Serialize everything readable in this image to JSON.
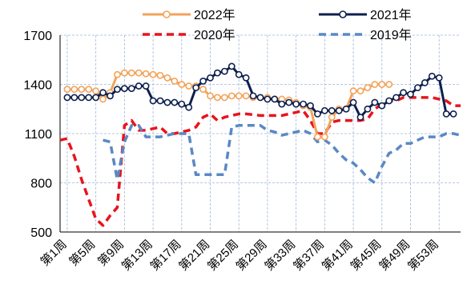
{
  "chart_data": {
    "type": "line",
    "title": "",
    "xlabel": "",
    "ylabel": "",
    "ylim": [
      500,
      1700
    ],
    "yticks": [
      500,
      800,
      1100,
      1400,
      1700
    ],
    "grid": true,
    "legend_position": "top",
    "categories": [
      "第1周",
      "第5周",
      "第9周",
      "第13周",
      "第17周",
      "第21周",
      "第25周",
      "第29周",
      "第33周",
      "第37周",
      "第41周",
      "第45周",
      "第49周",
      "第53周"
    ],
    "series": [
      {
        "name": "2022年",
        "color": "#f4a35a",
        "style": "solid-marker",
        "points": [
          [
            1,
            1370
          ],
          [
            2,
            1370
          ],
          [
            3,
            1370
          ],
          [
            4,
            1370
          ],
          [
            5,
            1360
          ],
          [
            6,
            1310
          ],
          [
            7,
            1350
          ],
          [
            8,
            1460
          ],
          [
            9,
            1470
          ],
          [
            10,
            1470
          ],
          [
            11,
            1470
          ],
          [
            12,
            1465
          ],
          [
            13,
            1460
          ],
          [
            14,
            1455
          ],
          [
            15,
            1440
          ],
          [
            16,
            1420
          ],
          [
            17,
            1400
          ],
          [
            18,
            1390
          ],
          [
            19,
            1390
          ],
          [
            20,
            1370
          ],
          [
            21,
            1330
          ],
          [
            22,
            1320
          ],
          [
            23,
            1320
          ],
          [
            24,
            1330
          ],
          [
            25,
            1330
          ],
          [
            26,
            1330
          ],
          [
            27,
            1320
          ],
          [
            28,
            1320
          ],
          [
            29,
            1320
          ],
          [
            30,
            1310
          ],
          [
            31,
            1310
          ],
          [
            32,
            1305
          ],
          [
            33,
            1290
          ],
          [
            34,
            1270
          ],
          [
            35,
            1260
          ],
          [
            36,
            1080
          ],
          [
            37,
            1080
          ],
          [
            38,
            1200
          ],
          [
            39,
            1250
          ],
          [
            40,
            1250
          ],
          [
            41,
            1360
          ],
          [
            42,
            1360
          ],
          [
            43,
            1380
          ],
          [
            44,
            1400
          ],
          [
            45,
            1400
          ],
          [
            46,
            1400
          ]
        ]
      },
      {
        "name": "2021年",
        "color": "#0d1f4e",
        "style": "solid-marker",
        "points": [
          [
            1,
            1320
          ],
          [
            2,
            1320
          ],
          [
            3,
            1320
          ],
          [
            4,
            1320
          ],
          [
            5,
            1320
          ],
          [
            6,
            1350
          ],
          [
            7,
            1330
          ],
          [
            8,
            1370
          ],
          [
            9,
            1375
          ],
          [
            10,
            1375
          ],
          [
            11,
            1390
          ],
          [
            12,
            1390
          ],
          [
            13,
            1300
          ],
          [
            14,
            1300
          ],
          [
            15,
            1290
          ],
          [
            16,
            1290
          ],
          [
            17,
            1280
          ],
          [
            18,
            1260
          ],
          [
            19,
            1380
          ],
          [
            20,
            1420
          ],
          [
            21,
            1440
          ],
          [
            22,
            1470
          ],
          [
            23,
            1480
          ],
          [
            24,
            1510
          ],
          [
            25,
            1460
          ],
          [
            26,
            1440
          ],
          [
            27,
            1330
          ],
          [
            28,
            1320
          ],
          [
            29,
            1310
          ],
          [
            30,
            1310
          ],
          [
            31,
            1280
          ],
          [
            32,
            1290
          ],
          [
            33,
            1280
          ],
          [
            34,
            1280
          ],
          [
            35,
            1270
          ],
          [
            36,
            1220
          ],
          [
            37,
            1240
          ],
          [
            38,
            1240
          ],
          [
            39,
            1240
          ],
          [
            40,
            1250
          ],
          [
            41,
            1290
          ],
          [
            42,
            1200
          ],
          [
            43,
            1250
          ],
          [
            44,
            1290
          ],
          [
            45,
            1270
          ],
          [
            46,
            1300
          ],
          [
            47,
            1320
          ],
          [
            48,
            1350
          ],
          [
            49,
            1340
          ],
          [
            50,
            1380
          ],
          [
            51,
            1410
          ],
          [
            52,
            1450
          ],
          [
            53,
            1440
          ],
          [
            54,
            1220
          ],
          [
            55,
            1220
          ]
        ]
      },
      {
        "name": "2020年",
        "color": "#e8141c",
        "style": "dashed",
        "points": [
          [
            0,
            1060
          ],
          [
            1,
            1070
          ],
          [
            2,
            960
          ],
          [
            3,
            820
          ],
          [
            4,
            700
          ],
          [
            5,
            580
          ],
          [
            6,
            540
          ],
          [
            7,
            600
          ],
          [
            8,
            650
          ],
          [
            9,
            1150
          ],
          [
            10,
            1180
          ],
          [
            11,
            1120
          ],
          [
            12,
            1120
          ],
          [
            13,
            1130
          ],
          [
            14,
            1140
          ],
          [
            15,
            1100
          ],
          [
            16,
            1100
          ],
          [
            17,
            1110
          ],
          [
            18,
            1120
          ],
          [
            19,
            1140
          ],
          [
            20,
            1200
          ],
          [
            21,
            1220
          ],
          [
            22,
            1180
          ],
          [
            23,
            1200
          ],
          [
            24,
            1210
          ],
          [
            25,
            1220
          ],
          [
            26,
            1220
          ],
          [
            27,
            1215
          ],
          [
            28,
            1210
          ],
          [
            29,
            1210
          ],
          [
            30,
            1210
          ],
          [
            31,
            1210
          ],
          [
            32,
            1220
          ],
          [
            33,
            1230
          ],
          [
            34,
            1240
          ],
          [
            35,
            1180
          ],
          [
            36,
            1100
          ],
          [
            37,
            1100
          ],
          [
            38,
            1170
          ],
          [
            39,
            1180
          ],
          [
            40,
            1180
          ],
          [
            41,
            1180
          ],
          [
            42,
            1180
          ],
          [
            43,
            1190
          ],
          [
            44,
            1250
          ],
          [
            45,
            1280
          ],
          [
            46,
            1300
          ],
          [
            47,
            1300
          ],
          [
            48,
            1320
          ],
          [
            49,
            1320
          ],
          [
            50,
            1320
          ],
          [
            51,
            1320
          ],
          [
            52,
            1320
          ],
          [
            53,
            1310
          ],
          [
            54,
            1300
          ],
          [
            55,
            1270
          ],
          [
            56,
            1270
          ]
        ]
      },
      {
        "name": "2019年",
        "color": "#5a88c4",
        "style": "dashed",
        "points": [
          [
            6,
            1060
          ],
          [
            7,
            1050
          ],
          [
            8,
            820
          ],
          [
            9,
            1050
          ],
          [
            10,
            1150
          ],
          [
            11,
            1150
          ],
          [
            12,
            1080
          ],
          [
            13,
            1080
          ],
          [
            14,
            1080
          ],
          [
            15,
            1090
          ],
          [
            16,
            1100
          ],
          [
            17,
            1100
          ],
          [
            18,
            1100
          ],
          [
            19,
            850
          ],
          [
            20,
            850
          ],
          [
            21,
            850
          ],
          [
            22,
            850
          ],
          [
            23,
            850
          ],
          [
            24,
            1140
          ],
          [
            25,
            1150
          ],
          [
            26,
            1150
          ],
          [
            27,
            1150
          ],
          [
            28,
            1150
          ],
          [
            29,
            1120
          ],
          [
            30,
            1110
          ],
          [
            31,
            1090
          ],
          [
            32,
            1100
          ],
          [
            33,
            1110
          ],
          [
            34,
            1120
          ],
          [
            35,
            1100
          ],
          [
            36,
            1050
          ],
          [
            37,
            1060
          ],
          [
            38,
            1030
          ],
          [
            39,
            980
          ],
          [
            40,
            940
          ],
          [
            41,
            920
          ],
          [
            42,
            880
          ],
          [
            43,
            830
          ],
          [
            44,
            800
          ],
          [
            45,
            900
          ],
          [
            46,
            980
          ],
          [
            47,
            1000
          ],
          [
            48,
            1040
          ],
          [
            49,
            1040
          ],
          [
            50,
            1060
          ],
          [
            51,
            1080
          ],
          [
            52,
            1080
          ],
          [
            53,
            1080
          ],
          [
            54,
            1100
          ],
          [
            55,
            1100
          ],
          [
            56,
            1090
          ]
        ]
      }
    ]
  }
}
